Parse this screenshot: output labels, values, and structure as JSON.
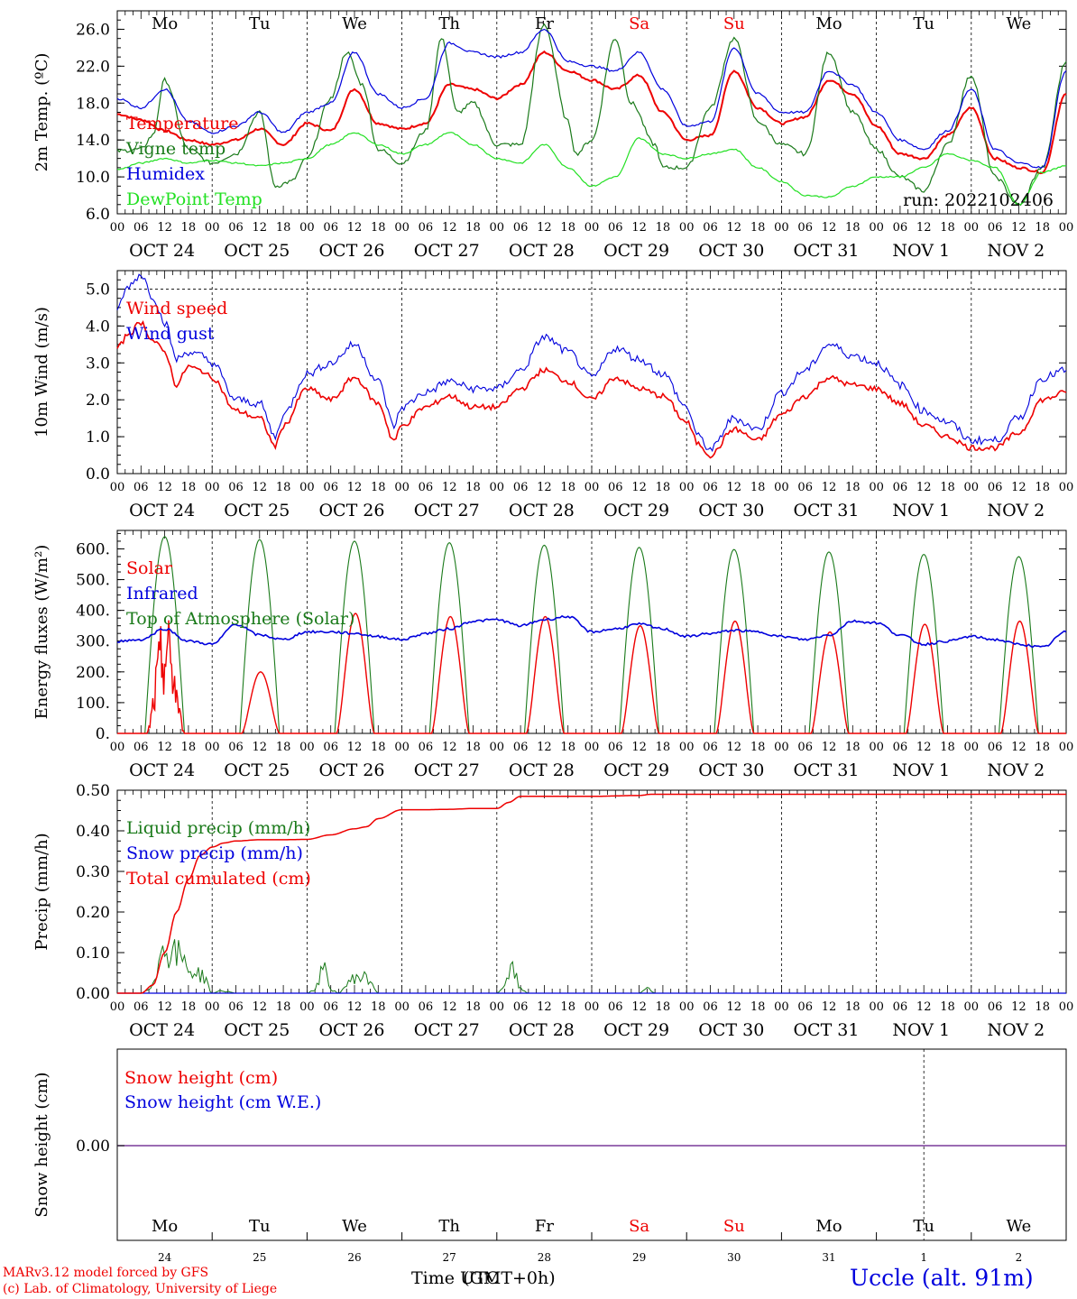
{
  "run_label": "run: 2022102406",
  "footer": {
    "model": "MARv3.12 model forced by GFS",
    "credit": "(c) Lab. of Climatology, University of Liege",
    "xlabel_a": "Time UTC",
    "xlabel_b": "(GMT+0h)",
    "station": "Uccle (alt. 91m)"
  },
  "colors": {
    "red": "#ee0000",
    "green": "#1a7a1a",
    "blue": "#0000dd",
    "lime": "#22e022",
    "purple": "#7a3a9a",
    "weekend": "#ee0000"
  },
  "days": [
    {
      "wd": "Mo",
      "date": "OCT 24",
      "num": "24",
      "weekend": false
    },
    {
      "wd": "Tu",
      "date": "OCT 25",
      "num": "25",
      "weekend": false
    },
    {
      "wd": "We",
      "date": "OCT 26",
      "num": "26",
      "weekend": false
    },
    {
      "wd": "Th",
      "date": "OCT 27",
      "num": "27",
      "weekend": false
    },
    {
      "wd": "Fr",
      "date": "OCT 28",
      "num": "28",
      "weekend": false
    },
    {
      "wd": "Sa",
      "date": "OCT 29",
      "num": "29",
      "weekend": true
    },
    {
      "wd": "Su",
      "date": "OCT 30",
      "num": "30",
      "weekend": true
    },
    {
      "wd": "Mo",
      "date": "OCT 31",
      "num": "31",
      "weekend": false
    },
    {
      "wd": "Tu",
      "date": "NOV  1",
      "num": "1",
      "weekend": false
    },
    {
      "wd": "We",
      "date": "NOV  2",
      "num": "2",
      "weekend": false
    }
  ],
  "hour_labels": [
    "00",
    "06",
    "12",
    "18"
  ],
  "chart_data": [
    {
      "type": "line",
      "ylabel": "2m Temp. (ºC)",
      "ylim": [
        6,
        28
      ],
      "yticks": [
        "6.0",
        "10.0",
        "14.0",
        "18.0",
        "22.0",
        "26.0"
      ],
      "x_unit": "hours since 2022-10-24 00 UTC",
      "series": [
        {
          "name": "Temperature",
          "color": "red",
          "x": [
            0,
            6,
            12,
            18,
            24,
            30,
            36,
            42,
            48,
            54,
            60,
            66,
            72,
            78,
            84,
            90,
            96,
            102,
            108,
            114,
            120,
            126,
            132,
            138,
            144,
            150,
            156,
            162,
            168,
            174,
            180,
            186,
            192,
            198,
            204,
            210,
            216,
            222,
            228,
            234,
            240
          ],
          "values": [
            16.8,
            16.2,
            15.0,
            14.0,
            13.5,
            14.0,
            15.2,
            13.5,
            15.8,
            15.0,
            19.5,
            15.8,
            15.2,
            15.8,
            20.0,
            19.5,
            18.5,
            20.0,
            23.5,
            21.5,
            20.5,
            19.5,
            21.0,
            17.0,
            14.0,
            14.5,
            21.5,
            17.5,
            15.8,
            16.5,
            20.5,
            19.0,
            15.5,
            12.5,
            12.0,
            14.5,
            17.5,
            12.0,
            11.0,
            10.5,
            19.0
          ]
        },
        {
          "name": "Vigne temp",
          "color": "green",
          "x": [
            0,
            6,
            9,
            12,
            18,
            24,
            30,
            36,
            40,
            44,
            48,
            54,
            58,
            62,
            66,
            72,
            78,
            82,
            86,
            90,
            96,
            102,
            108,
            114,
            116,
            120,
            126,
            130,
            136,
            138,
            144,
            150,
            156,
            162,
            168,
            174,
            180,
            186,
            192,
            198,
            204,
            210,
            216,
            222,
            228,
            234,
            240
          ],
          "values": [
            12.8,
            13.0,
            14.5,
            20.5,
            13.0,
            11.5,
            12.5,
            17.0,
            9.0,
            9.5,
            12.0,
            18.5,
            23.5,
            20.0,
            13.0,
            11.5,
            15.0,
            25.0,
            17.0,
            18.0,
            13.5,
            13.5,
            26.5,
            16.0,
            12.5,
            14.0,
            25.0,
            18.0,
            13.5,
            11.0,
            11.0,
            17.5,
            25.0,
            16.0,
            13.5,
            12.5,
            23.5,
            17.0,
            13.0,
            10.0,
            8.5,
            13.5,
            21.0,
            10.0,
            7.0,
            11.0,
            22.5
          ]
        },
        {
          "name": "Humidex",
          "color": "blue",
          "x": [
            0,
            6,
            12,
            18,
            24,
            30,
            36,
            42,
            48,
            54,
            60,
            66,
            72,
            78,
            84,
            90,
            96,
            102,
            108,
            114,
            120,
            126,
            132,
            138,
            144,
            150,
            156,
            162,
            168,
            174,
            180,
            186,
            192,
            198,
            204,
            210,
            216,
            222,
            228,
            234,
            240
          ],
          "values": [
            18.5,
            17.5,
            19.5,
            16.0,
            14.8,
            15.5,
            17.0,
            14.8,
            17.0,
            18.0,
            23.5,
            19.0,
            17.5,
            18.5,
            24.5,
            23.5,
            23.0,
            23.5,
            26.0,
            22.5,
            22.0,
            21.5,
            23.5,
            19.5,
            15.5,
            16.0,
            24.0,
            19.0,
            17.0,
            17.0,
            21.5,
            20.0,
            17.0,
            14.0,
            13.0,
            15.0,
            19.5,
            13.0,
            11.5,
            11.0,
            21.5
          ]
        },
        {
          "name": "DewPoint Temp",
          "color": "lime",
          "x": [
            0,
            6,
            12,
            18,
            24,
            30,
            36,
            42,
            48,
            54,
            60,
            66,
            72,
            78,
            84,
            90,
            96,
            102,
            108,
            114,
            120,
            126,
            132,
            138,
            144,
            150,
            156,
            162,
            168,
            174,
            180,
            186,
            192,
            198,
            204,
            210,
            216,
            222,
            228,
            234,
            240
          ],
          "values": [
            10.8,
            11.5,
            12.0,
            11.5,
            11.8,
            11.5,
            11.2,
            11.5,
            12.0,
            13.5,
            14.8,
            13.5,
            12.5,
            13.5,
            14.8,
            13.5,
            12.0,
            11.5,
            13.5,
            11.0,
            9.0,
            10.0,
            14.2,
            12.5,
            12.0,
            12.5,
            13.0,
            11.0,
            9.5,
            8.0,
            7.8,
            9.0,
            10.0,
            10.0,
            11.0,
            12.5,
            11.8,
            11.0,
            7.0,
            10.5,
            11.2
          ]
        }
      ]
    },
    {
      "type": "line",
      "ylabel": "10m Wind (m/s)",
      "ylim": [
        0,
        5.5
      ],
      "yticks": [
        "0.0",
        "1.0",
        "2.0",
        "3.0",
        "4.0",
        "5.0"
      ],
      "hline": 5.0,
      "x_unit": "hours since 2022-10-24 00 UTC",
      "series": [
        {
          "name": "Wind speed",
          "color": "red",
          "x": [
            0,
            3,
            6,
            9,
            12,
            15,
            18,
            21,
            24,
            30,
            36,
            40,
            42,
            48,
            54,
            60,
            66,
            70,
            72,
            78,
            84,
            90,
            96,
            102,
            108,
            114,
            120,
            126,
            132,
            138,
            144,
            147,
            150,
            156,
            162,
            168,
            174,
            180,
            186,
            192,
            198,
            204,
            210,
            216,
            222,
            228,
            234,
            240
          ],
          "values": [
            3.4,
            3.8,
            4.1,
            3.6,
            3.3,
            2.4,
            2.9,
            2.8,
            2.6,
            1.7,
            1.5,
            0.75,
            1.3,
            2.3,
            2.0,
            2.6,
            1.9,
            0.9,
            1.3,
            1.8,
            2.1,
            1.8,
            1.8,
            2.3,
            2.8,
            2.5,
            2.0,
            2.6,
            2.3,
            2.1,
            1.4,
            0.8,
            0.5,
            1.2,
            0.9,
            1.6,
            2.1,
            2.6,
            2.4,
            2.3,
            1.9,
            1.3,
            1.0,
            0.7,
            0.7,
            1.1,
            2.0,
            2.2
          ]
        },
        {
          "name": "Wind gust",
          "color": "blue",
          "x": [
            0,
            3,
            6,
            9,
            12,
            15,
            18,
            21,
            24,
            30,
            36,
            40,
            42,
            48,
            54,
            60,
            66,
            70,
            72,
            78,
            84,
            90,
            96,
            102,
            108,
            114,
            120,
            126,
            132,
            138,
            144,
            147,
            150,
            156,
            162,
            168,
            174,
            180,
            186,
            192,
            198,
            204,
            210,
            216,
            222,
            228,
            234,
            240
          ],
          "values": [
            4.5,
            5.1,
            5.4,
            4.8,
            4.1,
            3.1,
            3.3,
            3.2,
            3.0,
            2.0,
            1.9,
            1.0,
            1.6,
            2.7,
            3.0,
            3.5,
            2.5,
            1.3,
            1.8,
            2.2,
            2.5,
            2.3,
            2.3,
            2.8,
            3.7,
            3.3,
            2.6,
            3.4,
            3.1,
            2.7,
            1.8,
            1.0,
            0.65,
            1.5,
            1.2,
            2.2,
            2.8,
            3.5,
            3.2,
            3.0,
            2.4,
            1.7,
            1.4,
            0.9,
            0.9,
            1.5,
            2.6,
            2.8
          ]
        }
      ]
    },
    {
      "type": "line",
      "ylabel": "Energy fluxes (W/m²)",
      "ylim": [
        0,
        660
      ],
      "yticks": [
        "0.",
        "100.",
        "200.",
        "300.",
        "400.",
        "500.",
        "600."
      ],
      "x_unit": "hours since 2022-10-24 00 UTC",
      "series": [
        {
          "name": "Solar",
          "color": "red",
          "peaks": [
            400,
            200,
            390,
            380,
            380,
            350,
            365,
            330,
            355,
            365
          ],
          "rise_h": 7.5,
          "set_h": 17.0
        },
        {
          "name": "Infrared",
          "color": "blue",
          "x": [
            0,
            6,
            12,
            18,
            24,
            30,
            36,
            42,
            48,
            54,
            60,
            66,
            72,
            78,
            84,
            90,
            96,
            102,
            108,
            114,
            120,
            126,
            132,
            138,
            144,
            150,
            156,
            162,
            168,
            174,
            180,
            186,
            192,
            198,
            204,
            210,
            216,
            222,
            228,
            234,
            240
          ],
          "values": [
            300,
            305,
            340,
            300,
            290,
            355,
            320,
            305,
            330,
            330,
            325,
            315,
            305,
            325,
            340,
            365,
            370,
            350,
            370,
            380,
            330,
            340,
            355,
            340,
            315,
            325,
            335,
            330,
            315,
            305,
            320,
            365,
            360,
            320,
            290,
            300,
            315,
            305,
            290,
            280,
            330
          ]
        },
        {
          "name": "Top of Atmosphere (Solar)",
          "color": "green",
          "peaks": [
            640,
            630,
            625,
            620,
            612,
            605,
            598,
            590,
            582,
            575
          ],
          "rise_h": 7.0,
          "set_h": 17.0
        }
      ]
    },
    {
      "type": "line",
      "ylabel": "Precip (mm/h)",
      "ylim": [
        0,
        0.5
      ],
      "yticks": [
        "0.00",
        "0.10",
        "0.20",
        "0.30",
        "0.40",
        "0.50"
      ],
      "x_unit": "hours since 2022-10-24 00 UTC",
      "series": [
        {
          "name": "Liquid precip (mm/h)",
          "color": "green",
          "x": [
            0,
            6,
            8,
            10,
            12,
            14,
            16,
            18,
            20,
            22,
            24,
            26,
            28,
            30,
            32,
            48,
            50,
            52,
            54,
            56,
            58,
            60,
            62,
            64,
            66,
            68,
            70,
            72,
            96,
            98,
            100,
            102,
            104,
            106,
            108,
            132,
            134,
            136,
            240
          ],
          "values": [
            0,
            0,
            0.01,
            0.06,
            0.12,
            0.1,
            0.09,
            0.06,
            0.05,
            0.04,
            0,
            0.005,
            0.004,
            0,
            0,
            0,
            0.01,
            0.06,
            0.01,
            0,
            0.02,
            0.04,
            0.04,
            0.03,
            0,
            0,
            0,
            0,
            0,
            0.02,
            0.06,
            0.01,
            0,
            0,
            0,
            0,
            0.015,
            0,
            0
          ]
        },
        {
          "name": "Snow precip (mm/h)",
          "color": "blue",
          "x": [
            0,
            240
          ],
          "values": [
            0,
            0
          ]
        },
        {
          "name": "Total cumulated (cm)",
          "color": "red",
          "x": [
            0,
            6,
            9,
            12,
            15,
            18,
            21,
            24,
            27,
            30,
            36,
            42,
            48,
            54,
            60,
            63,
            66,
            72,
            78,
            84,
            90,
            96,
            99,
            102,
            108,
            120,
            132,
            135,
            144,
            240
          ],
          "values": [
            0,
            0,
            0.02,
            0.1,
            0.2,
            0.28,
            0.34,
            0.36,
            0.37,
            0.375,
            0.378,
            0.378,
            0.379,
            0.39,
            0.405,
            0.41,
            0.43,
            0.452,
            0.452,
            0.453,
            0.455,
            0.455,
            0.47,
            0.485,
            0.485,
            0.485,
            0.487,
            0.49,
            0.49,
            0.49
          ]
        }
      ]
    },
    {
      "type": "line",
      "ylabel": "Snow height (cm)",
      "ytick_zero": "0.00",
      "series": [
        {
          "name": "Snow height (cm)",
          "color": "red",
          "x": [
            0,
            240
          ],
          "values": [
            0,
            0
          ]
        },
        {
          "name": "Snow height (cm W.E.)",
          "color": "blue",
          "x": [
            0,
            240
          ],
          "values": [
            0,
            0
          ]
        }
      ]
    }
  ]
}
